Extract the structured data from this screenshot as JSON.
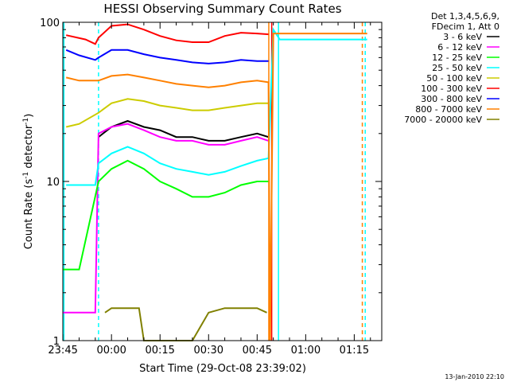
{
  "chart_data": {
    "type": "line",
    "title": "HESSI Observing Summary Count Rates",
    "xlabel": "Start Time (29-Oct-08 23:39:02)",
    "ylabel": "Count Rate (s",
    "ylabel_sup": "-1",
    "ylabel_rest": " detector",
    "ylabel_sup2": "-1",
    "ylabel_end": ")",
    "yscale": "log",
    "ylim": [
      1,
      100
    ],
    "y_ticklabels": [
      {
        "value": 1,
        "label": "1"
      },
      {
        "value": 10,
        "label": "10"
      },
      {
        "value": 100,
        "label": "100"
      }
    ],
    "xlim_min": [
      -15.033,
      83.5
    ],
    "x_ticklabels": [
      {
        "value": -15,
        "label": "23:45"
      },
      {
        "value": 0,
        "label": "00:00"
      },
      {
        "value": 15,
        "label": "00:15"
      },
      {
        "value": 30,
        "label": "00:30"
      },
      {
        "value": 45,
        "label": "00:45"
      },
      {
        "value": 60,
        "label": "01:00"
      },
      {
        "value": 75,
        "label": "01:15"
      }
    ],
    "legend_title": [
      "Det 1,3,4,5,6,9,",
      "FDecim 1, Att 0"
    ],
    "legend_placement": "outside-right",
    "series": [
      {
        "name": "3 - 6 keV",
        "color": "#000000",
        "x": [
          -4,
          0,
          5,
          10,
          15,
          20,
          25,
          30,
          35,
          40,
          45,
          48.5
        ],
        "y": [
          19,
          22,
          24,
          22,
          21,
          19,
          19,
          18,
          18,
          19,
          20,
          19
        ]
      },
      {
        "name": "6 - 12 keV",
        "color": "#ff00ff",
        "x": [
          -15,
          -10,
          -5,
          -4,
          0,
          5,
          10,
          15,
          20,
          25,
          30,
          35,
          40,
          45,
          48.5
        ],
        "y": [
          1.5,
          1.5,
          1.5,
          20,
          22,
          23,
          21,
          19,
          18,
          18,
          17,
          17,
          18,
          19,
          18
        ]
      },
      {
        "name": "12 - 25 keV",
        "color": "#00ff00",
        "x": [
          -15,
          -10,
          -4,
          0,
          5,
          10,
          15,
          20,
          25,
          30,
          35,
          40,
          45,
          48.5
        ],
        "y": [
          2.8,
          2.8,
          10,
          12,
          13.5,
          12,
          10,
          9,
          8,
          8,
          8.5,
          9.5,
          10,
          10
        ]
      },
      {
        "name": "25 - 50 keV",
        "color": "#00ffff",
        "x": [
          -14,
          -10,
          -5,
          -4,
          0,
          5,
          10,
          15,
          20,
          25,
          30,
          35,
          40,
          45,
          48.5,
          50,
          52,
          75,
          79
        ],
        "y": [
          9.5,
          9.5,
          9.5,
          13,
          15,
          16.5,
          15,
          13,
          12,
          11.5,
          11,
          11.5,
          12.5,
          13.5,
          14,
          90,
          78,
          78,
          78
        ]
      },
      {
        "name": "50 - 100 keV",
        "color": "#cccc00",
        "x": [
          -14,
          -10,
          -4,
          0,
          5,
          10,
          15,
          20,
          25,
          30,
          35,
          40,
          45,
          48.5
        ],
        "y": [
          22,
          23,
          27,
          31,
          33,
          32,
          30,
          29,
          28,
          28,
          29,
          30,
          31,
          31
        ]
      },
      {
        "name": "100 - 300 keV",
        "color": "#ff0000",
        "x": [
          -14,
          -8,
          -5,
          -4,
          0,
          5,
          10,
          15,
          20,
          25,
          30,
          35,
          40,
          45,
          48.5
        ],
        "y": [
          83,
          78,
          73,
          80,
          95,
          97,
          90,
          82,
          77,
          75,
          75,
          82,
          86,
          85,
          84
        ]
      },
      {
        "name": "300 - 800 keV",
        "color": "#0000ff",
        "x": [
          -14,
          -10,
          -5,
          -4,
          0,
          5,
          10,
          15,
          20,
          25,
          30,
          35,
          40,
          45,
          48.5
        ],
        "y": [
          67,
          62,
          58,
          60,
          67,
          67,
          63,
          60,
          58,
          56,
          55,
          56,
          58,
          57,
          57
        ]
      },
      {
        "name": "800 - 7000 keV",
        "color": "#ff8000",
        "x": [
          -14,
          -10,
          -4,
          0,
          5,
          10,
          15,
          20,
          25,
          30,
          35,
          40,
          45,
          48.5,
          49,
          50,
          75,
          79
        ],
        "y": [
          45,
          43,
          43,
          46,
          47,
          45,
          43,
          41,
          40,
          39,
          40,
          42,
          43,
          42,
          1,
          85,
          85,
          85
        ]
      },
      {
        "name": "7000 - 20000 keV",
        "color": "#808000",
        "x": [
          -2,
          0,
          5,
          8.5,
          10,
          25,
          30,
          35,
          40,
          45,
          48
        ],
        "y": [
          1.5,
          1.6,
          1.6,
          1.6,
          1,
          1,
          1.5,
          1.6,
          1.6,
          1.6,
          1.5
        ]
      }
    ],
    "vlines": [
      {
        "x": -14.7,
        "color": "#00ffff",
        "style": "solid"
      },
      {
        "x": -4,
        "color": "#00ffff",
        "style": "dashed"
      },
      {
        "x": 48.6,
        "color": "#ff8000",
        "style": "solid"
      },
      {
        "x": 49.5,
        "color": "#ff0000",
        "style": "solid"
      },
      {
        "x": 51.6,
        "color": "#00ffff",
        "style": "solid"
      },
      {
        "x": 77.5,
        "color": "#ff8000",
        "style": "dashed"
      },
      {
        "x": 78.4,
        "color": "#00ffff",
        "style": "dashed"
      }
    ]
  },
  "footer": {
    "date": "13-Jan-2010 22:10"
  }
}
